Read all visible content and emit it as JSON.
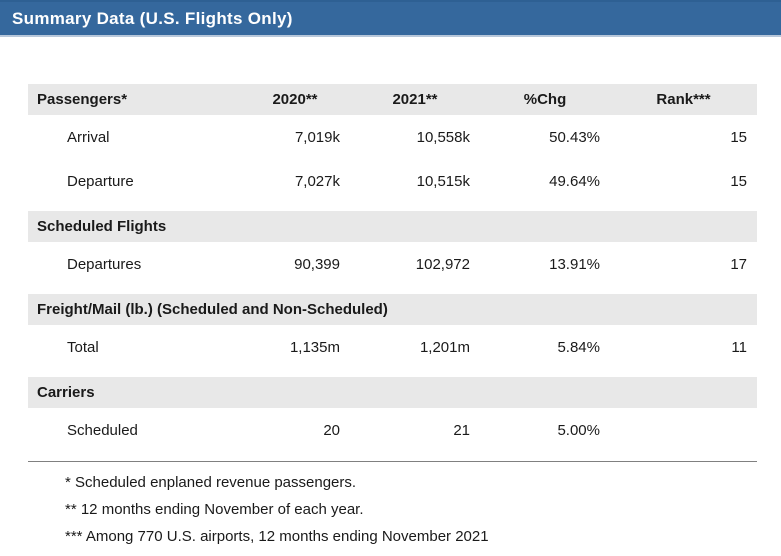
{
  "title_bar": {
    "title": "Summary Data (U.S. Flights Only)"
  },
  "colors": {
    "title_bar_blue": "#35689D",
    "title_text": "#FFFFFF",
    "band_gray": "#E8E8E8",
    "divider_gray": "#808080",
    "body_text": "#1A1A1A"
  },
  "table": {
    "columns": [
      "Passengers*",
      "2020**",
      "2021**",
      "%Chg",
      "Rank***"
    ],
    "sections": [
      {
        "label": "Passengers*",
        "rows": [
          [
            "Arrival",
            "7,019k",
            "10,558k",
            "50.43%",
            "15"
          ],
          [
            "Departure",
            "7,027k",
            "10,515k",
            "49.64%",
            "15"
          ]
        ]
      },
      {
        "label": "Scheduled Flights",
        "rows": [
          [
            "Departures",
            "90,399",
            "102,972",
            "13.91%",
            "17"
          ]
        ]
      },
      {
        "label": "Freight/Mail (lb.) (Scheduled and Non-Scheduled)",
        "rows": [
          [
            "Total",
            "1,135m",
            "1,201m",
            "5.84%",
            "11"
          ]
        ]
      },
      {
        "label": "Carriers",
        "rows": [
          [
            "Scheduled",
            "20",
            "21",
            "5.00%",
            ""
          ]
        ]
      }
    ]
  },
  "footnotes": [
    "* Scheduled enplaned revenue passengers.",
    "** 12 months ending November of each year.",
    "*** Among 770 U.S. airports, 12 months ending November 2021"
  ]
}
